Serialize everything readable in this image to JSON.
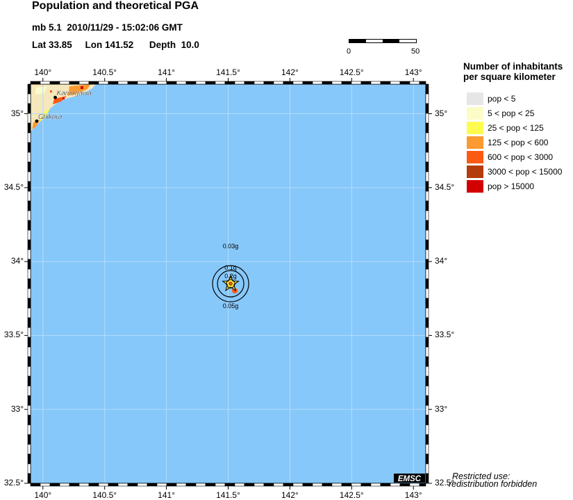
{
  "header": {
    "title": "Population and theoretical PGA",
    "line1": "mb 5.1  2010/11/29 - 15:02:06 GMT",
    "line2": "Lat 33.85     Lon 141.52      Depth  10.0"
  },
  "scale": {
    "min_label": "0",
    "max_label": "50"
  },
  "legend": {
    "title_line1": "Number of inhabitants",
    "title_line2": "per square kilometer",
    "items": [
      {
        "label": "pop < 5",
        "color": "#e6e6e6"
      },
      {
        "label": "5 < pop < 25",
        "color": "#fcfcc8"
      },
      {
        "label": "25 < pop < 125",
        "color": "#fcfc50"
      },
      {
        "label": "125 < pop < 600",
        "color": "#fc9a32"
      },
      {
        "label": "600 < pop < 3000",
        "color": "#fc5a14"
      },
      {
        "label": "3000 < pop < 15000",
        "color": "#b43c0c"
      },
      {
        "label": "pop > 15000",
        "color": "#d20000"
      }
    ]
  },
  "map": {
    "lon_range": [
      139.9,
      143.1
    ],
    "lat_range": [
      32.5,
      35.2
    ],
    "lon_ticks": [
      {
        "value": 140.0,
        "label": "140°"
      },
      {
        "value": 140.5,
        "label": "140.5°"
      },
      {
        "value": 141.0,
        "label": "141°"
      },
      {
        "value": 141.5,
        "label": "141.5°"
      },
      {
        "value": 142.0,
        "label": "142°"
      },
      {
        "value": 142.5,
        "label": "142.5°"
      },
      {
        "value": 143.0,
        "label": "143°"
      }
    ],
    "lat_ticks": [
      {
        "value": 35.0,
        "label": "35°"
      },
      {
        "value": 34.5,
        "label": "34.5°"
      },
      {
        "value": 34.0,
        "label": "34°"
      },
      {
        "value": 33.5,
        "label": "33.5°"
      },
      {
        "value": 33.0,
        "label": "33°"
      },
      {
        "value": 32.5,
        "label": "32.5°"
      }
    ],
    "epicenter": {
      "lat": 33.85,
      "lon": 141.52
    },
    "cities": [
      {
        "name": "Kamogawa",
        "lat": 35.11,
        "lon": 140.1
      },
      {
        "name": "Chikura",
        "lat": 34.95,
        "lon": 139.95
      }
    ],
    "pga_labels": {
      "outer": "0.03g",
      "inner_top": "0.1g",
      "inner_mid": "0.2g",
      "bottom": "0.05g"
    },
    "ocean_color": "#87c8fa"
  },
  "footer": {
    "badge": "EMSC",
    "restricted_line1": "Restricted use:",
    "restricted_line2": "redistribution forbidden"
  }
}
